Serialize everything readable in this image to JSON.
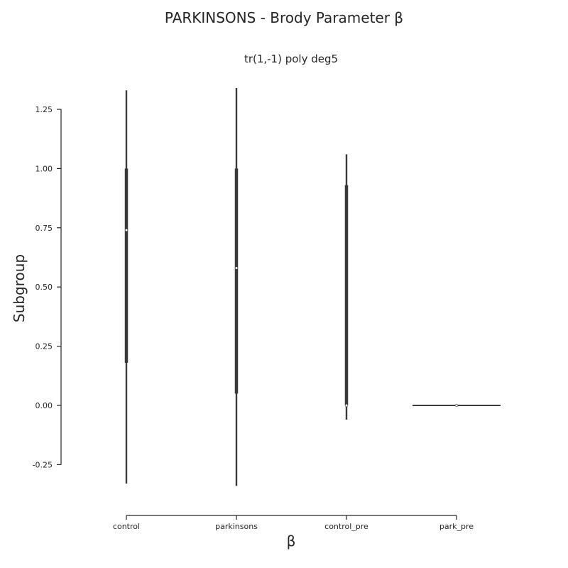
{
  "chart_data": {
    "type": "violin",
    "title": "PARKINSONS - Brody Parameter β",
    "subtitle": "tr(1,-1) poly deg5",
    "xlabel": "β",
    "ylabel": "Subgroup",
    "categories": [
      "control",
      "parkinsons",
      "control_pre",
      "park_pre"
    ],
    "yticks": [
      "-0.25",
      "0.00",
      "0.25",
      "0.50",
      "0.75",
      "1.00",
      "1.25"
    ],
    "ytick_values": [
      -0.25,
      0.0,
      0.25,
      0.5,
      0.75,
      1.0,
      1.25
    ],
    "ylim": [
      -0.25,
      1.25
    ],
    "grid": false,
    "violins": [
      {
        "category": "control",
        "min": -0.33,
        "max": 1.33,
        "q1": 0.18,
        "q3": 1.0,
        "median": 0.74
      },
      {
        "category": "parkinsons",
        "min": -0.34,
        "max": 1.34,
        "q1": 0.05,
        "q3": 1.0,
        "median": 0.58
      },
      {
        "category": "control_pre",
        "min": -0.06,
        "max": 1.06,
        "q1": 0.0,
        "q3": 0.93,
        "median": 0.0
      },
      {
        "category": "park_pre",
        "min": 0.0,
        "max": 0.0,
        "q1": 0.0,
        "q3": 0.0,
        "median": 0.0
      }
    ],
    "colors": {
      "line": "#3a3a3a",
      "median": "#ffffff",
      "axis": "#262626"
    }
  }
}
